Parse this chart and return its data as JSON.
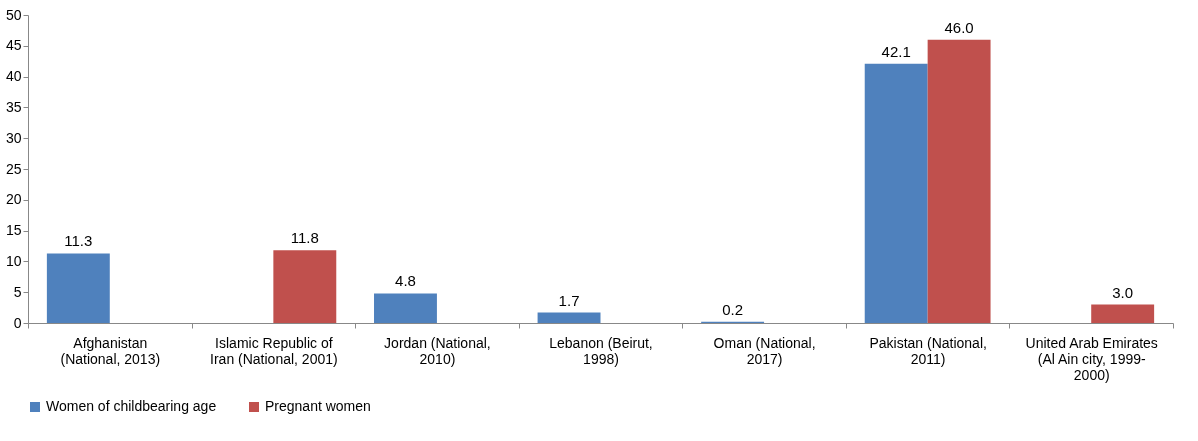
{
  "chart_data": {
    "type": "bar",
    "categories": [
      "Afghanistan (National, 2013)",
      "Islamic Republic of Iran (National, 2001)",
      "Jordan (National, 2010)",
      "Lebanon (Beirut, 1998)",
      "Oman (National, 2017)",
      "Pakistan (National, 2011)",
      "United Arab Emirates (Al Ain city, 1999-2000)"
    ],
    "series": [
      {
        "name": "Women of childbearing age",
        "color": "#4f81bd",
        "values": [
          11.3,
          null,
          4.8,
          1.7,
          0.2,
          42.1,
          null
        ],
        "value_labels": [
          "11.3",
          null,
          "4.8",
          "1.7",
          "0.2",
          "42.1",
          null
        ]
      },
      {
        "name": "Pregnant women",
        "color": "#c0504d",
        "values": [
          null,
          11.8,
          null,
          null,
          null,
          46.0,
          3.0
        ],
        "value_labels": [
          null,
          "11.8",
          null,
          null,
          null,
          "46.0",
          "3.0"
        ]
      }
    ],
    "ylim": [
      0,
      50
    ],
    "yticks": [
      0,
      5,
      10,
      15,
      20,
      25,
      30,
      35,
      40,
      45,
      50
    ],
    "grid": false,
    "legend": "bottom"
  }
}
